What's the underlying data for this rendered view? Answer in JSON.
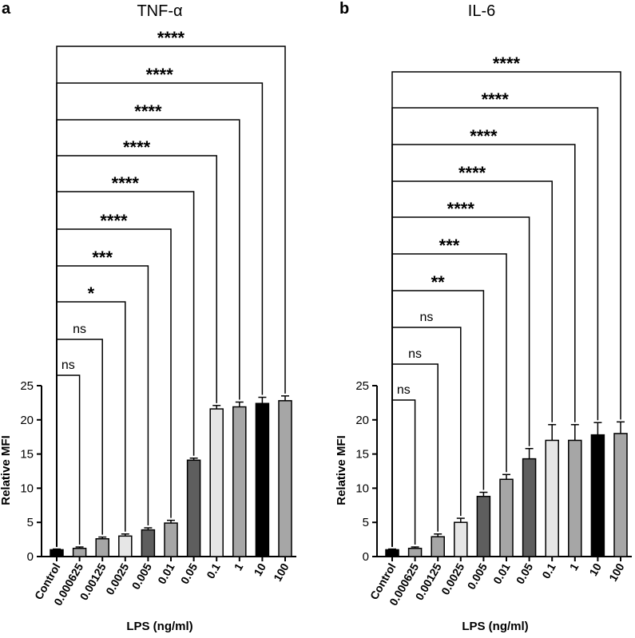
{
  "chart_data": [
    {
      "panel": "a",
      "type": "bar",
      "title": "TNF-α",
      "xlabel": "LPS (ng/ml)",
      "ylabel": "Relative MFI",
      "ylim": [
        0,
        25
      ],
      "yticks": [
        0,
        5,
        10,
        15,
        20,
        25
      ],
      "categories": [
        "Control",
        "0.000625",
        "0.00125",
        "0.0025",
        "0.005",
        "0.01",
        "0.05",
        "0.1",
        "1",
        "10",
        "100"
      ],
      "values": [
        1.0,
        1.2,
        2.6,
        3.0,
        3.9,
        4.9,
        14.1,
        21.6,
        21.9,
        22.4,
        22.8
      ],
      "errors": [
        0.1,
        0.2,
        0.25,
        0.3,
        0.3,
        0.4,
        0.3,
        0.5,
        0.7,
        0.9,
        0.7
      ],
      "fills": [
        "#000000",
        "#a6a6a6",
        "#a6a6a6",
        "#e6e6e6",
        "#5e5e5e",
        "#a6a6a6",
        "#5e5e5e",
        "#e6e6e6",
        "#a6a6a6",
        "#000000",
        "#a6a6a6"
      ],
      "comparisons": [
        "ns",
        "ns",
        "*",
        "***",
        "****",
        "****",
        "****",
        "****",
        "****",
        "****"
      ]
    },
    {
      "panel": "b",
      "type": "bar",
      "title": "IL-6",
      "xlabel": "LPS (ng/ml)",
      "ylabel": "Relative MFI",
      "ylim": [
        0,
        25
      ],
      "yticks": [
        0,
        5,
        10,
        15,
        20,
        25
      ],
      "categories": [
        "Control",
        "0.000625",
        "0.00125",
        "0.0025",
        "0.005",
        "0.01",
        "0.05",
        "0.1",
        "1",
        "10",
        "100"
      ],
      "values": [
        1.0,
        1.2,
        2.9,
        5.0,
        8.8,
        11.3,
        14.3,
        17.0,
        17.0,
        17.8,
        18.0
      ],
      "errors": [
        0.1,
        0.2,
        0.4,
        0.6,
        0.6,
        0.7,
        1.5,
        2.3,
        2.3,
        1.8,
        1.7
      ],
      "fills": [
        "#000000",
        "#a6a6a6",
        "#a6a6a6",
        "#e6e6e6",
        "#5e5e5e",
        "#a6a6a6",
        "#5e5e5e",
        "#e6e6e6",
        "#a6a6a6",
        "#000000",
        "#a6a6a6"
      ],
      "comparisons": [
        "ns",
        "ns",
        "ns",
        "**",
        "***",
        "****",
        "****",
        "****",
        "****",
        "****"
      ]
    }
  ]
}
